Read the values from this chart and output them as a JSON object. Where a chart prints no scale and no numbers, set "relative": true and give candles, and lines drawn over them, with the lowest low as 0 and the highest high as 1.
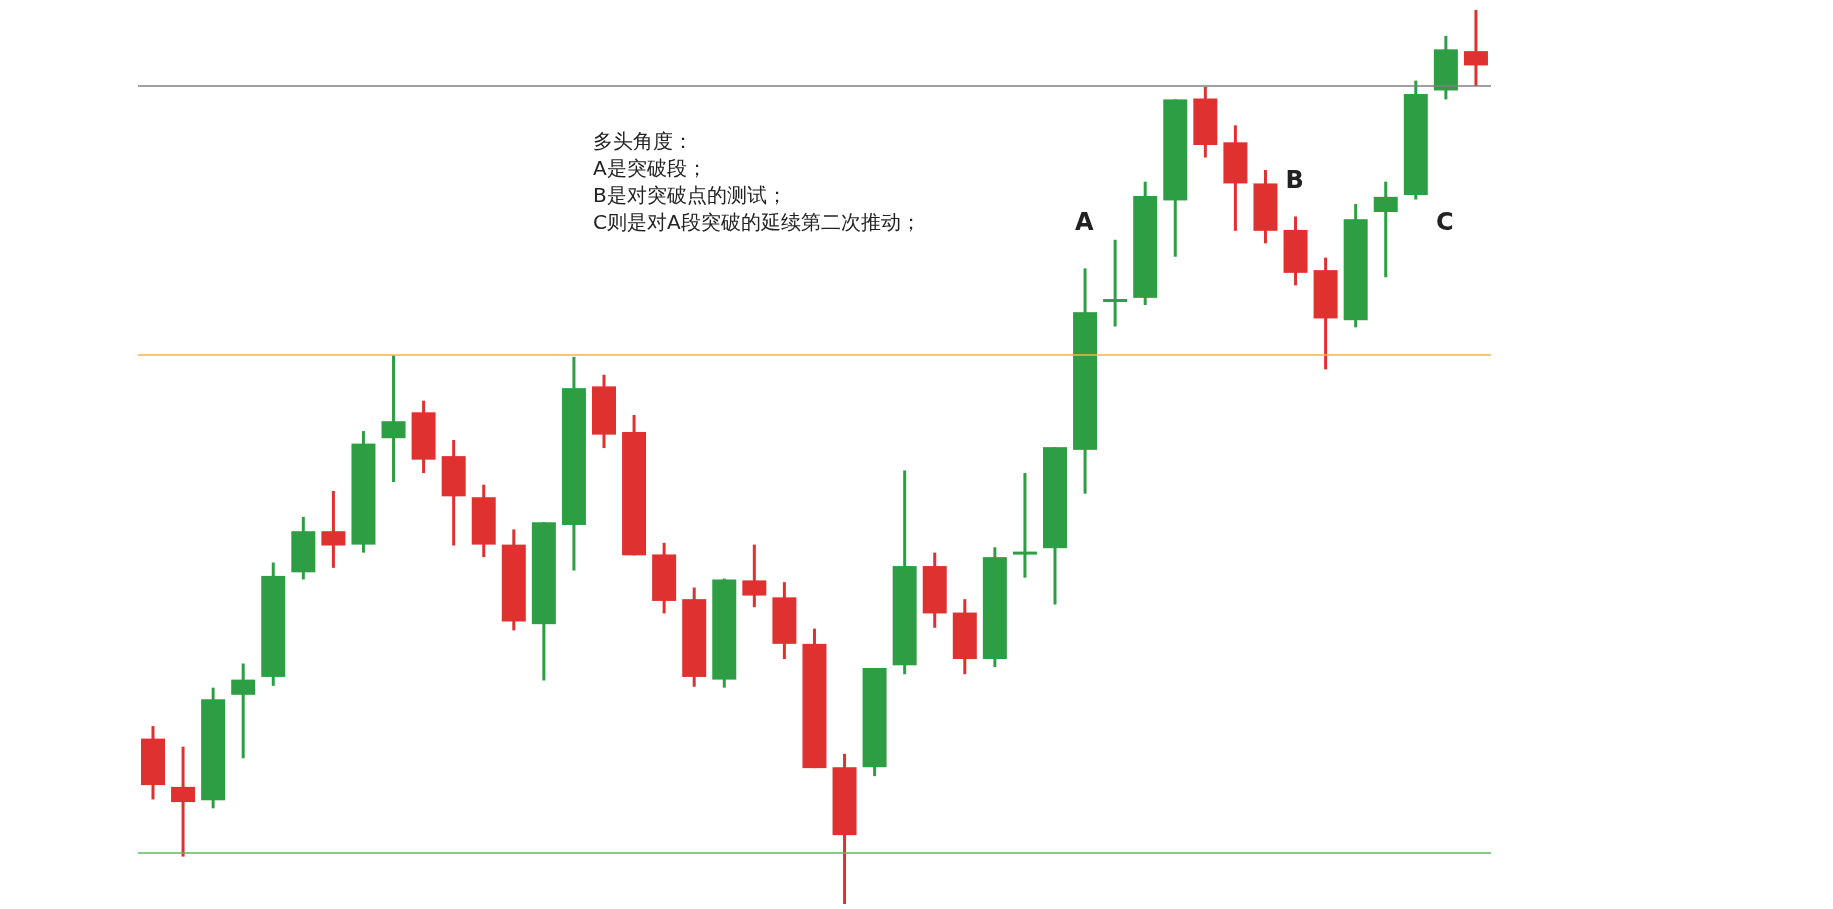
{
  "chart_data": {
    "type": "candlestick",
    "relative": true,
    "tick_labels": false,
    "categories": [
      null,
      null,
      null,
      null,
      null,
      null,
      null,
      null,
      null,
      null,
      null,
      null,
      null,
      null,
      null,
      null,
      null,
      null,
      null,
      null,
      null,
      null,
      null,
      null,
      null,
      null,
      null,
      null,
      null,
      null,
      null,
      null,
      null,
      null,
      null,
      null,
      null,
      null,
      null,
      null,
      null,
      null,
      null,
      null,
      null
    ],
    "ohlc": [
      [
        0.185,
        0.199,
        0.117,
        0.133
      ],
      [
        0.131,
        0.176,
        0.053,
        0.114
      ],
      [
        0.116,
        0.242,
        0.107,
        0.229
      ],
      [
        0.234,
        0.269,
        0.163,
        0.251
      ],
      [
        0.254,
        0.382,
        0.244,
        0.367
      ],
      [
        0.371,
        0.433,
        0.363,
        0.417
      ],
      [
        0.417,
        0.462,
        0.376,
        0.401
      ],
      [
        0.402,
        0.529,
        0.393,
        0.515
      ],
      [
        0.521,
        0.614,
        0.472,
        0.54
      ],
      [
        0.55,
        0.563,
        0.482,
        0.497
      ],
      [
        0.501,
        0.519,
        0.401,
        0.456
      ],
      [
        0.455,
        0.469,
        0.388,
        0.402
      ],
      [
        0.402,
        0.419,
        0.306,
        0.316
      ],
      [
        0.313,
        0.427,
        0.25,
        0.427
      ],
      [
        0.424,
        0.612,
        0.373,
        0.577
      ],
      [
        0.579,
        0.592,
        0.51,
        0.525
      ],
      [
        0.528,
        0.547,
        0.39,
        0.39
      ],
      [
        0.391,
        0.404,
        0.325,
        0.339
      ],
      [
        0.341,
        0.354,
        0.243,
        0.254
      ],
      [
        0.251,
        0.364,
        0.242,
        0.363
      ],
      [
        0.362,
        0.402,
        0.332,
        0.345
      ],
      [
        0.343,
        0.36,
        0.274,
        0.291
      ],
      [
        0.291,
        0.308,
        0.152,
        0.152
      ],
      [
        0.153,
        0.168,
        0,
        0.077
      ],
      [
        0.153,
        0.264,
        0.143,
        0.264
      ],
      [
        0.267,
        0.485,
        0.257,
        0.378
      ],
      [
        0.378,
        0.393,
        0.309,
        0.325
      ],
      [
        0.326,
        0.341,
        0.257,
        0.274
      ],
      [
        0.274,
        0.399,
        0.265,
        0.388
      ],
      [
        0.391,
        0.482,
        0.365,
        0.394
      ],
      [
        0.398,
        0.511,
        0.335,
        0.511
      ],
      [
        0.508,
        0.711,
        0.459,
        0.662
      ],
      [
        0.674,
        0.743,
        0.646,
        0.676
      ],
      [
        0.678,
        0.808,
        0.67,
        0.792
      ],
      [
        0.787,
        0.9,
        0.724,
        0.9
      ],
      [
        0.901,
        0.914,
        0.835,
        0.849
      ],
      [
        0.852,
        0.871,
        0.753,
        0.806
      ],
      [
        0.806,
        0.821,
        0.739,
        0.753
      ],
      [
        0.754,
        0.769,
        0.692,
        0.706
      ],
      [
        0.709,
        0.723,
        0.598,
        0.655
      ],
      [
        0.653,
        0.783,
        0.645,
        0.766
      ],
      [
        0.774,
        0.808,
        0.701,
        0.791
      ],
      [
        0.793,
        0.921,
        0.788,
        0.906
      ],
      [
        0.91,
        0.971,
        0.9,
        0.956
      ],
      [
        0.954,
        1,
        0.915,
        0.938
      ]
    ],
    "colors": [
      "#e03131",
      "#e03131",
      "#2e9e44",
      "#2e9e44",
      "#2e9e44",
      "#2e9e44",
      "#e03131",
      "#2e9e44",
      "#2e9e44",
      "#e03131",
      "#e03131",
      "#e03131",
      "#e03131",
      "#2e9e44",
      "#2e9e44",
      "#e03131",
      "#e03131",
      "#e03131",
      "#e03131",
      "#2e9e44",
      "#e03131",
      "#e03131",
      "#e03131",
      "#e03131",
      "#2e9e44",
      "#2e9e44",
      "#e03131",
      "#e03131",
      "#2e9e44",
      "#2e9e44",
      "#2e9e44",
      "#2e9e44",
      "#2e9e44",
      "#2e9e44",
      "#2e9e44",
      "#e03131",
      "#e03131",
      "#e03131",
      "#e03131",
      "#e03131",
      "#2e9e44",
      "#2e9e44",
      "#2e9e44",
      "#2e9e44",
      "#e03131"
    ],
    "ref_lines": [
      {
        "axis": "y",
        "value": 0.915,
        "color": "#808080"
      },
      {
        "axis": "y",
        "value": 0.614,
        "color": "#f0b450"
      },
      {
        "axis": "y",
        "value": 0.057,
        "color": "#5cb85c"
      }
    ],
    "annotations": [
      "多头角度：\nA是突破段；\nB是对突破点的测试；\nC则是对A段突破的延续第二次推动；",
      "A",
      "B",
      "C"
    ]
  }
}
